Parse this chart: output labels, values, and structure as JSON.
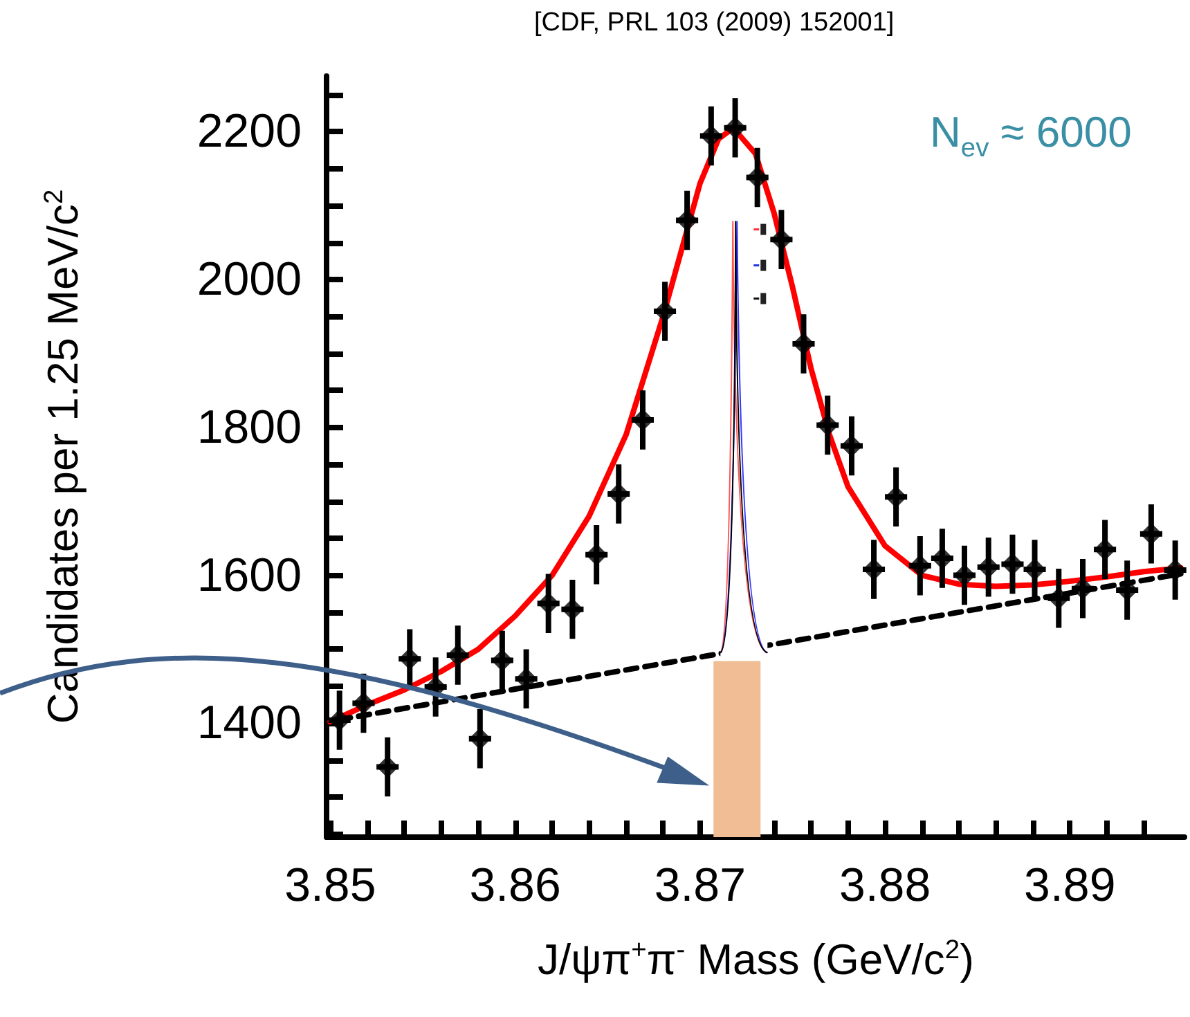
{
  "chart_data": {
    "type": "scatter",
    "xlabel": "J/ψπ$^{+}$π$^{-}$ Mass (GeV/c$^{2}$)",
    "ylabel": "Candidates per 1.25 MeV/c$^{2}$",
    "annotations": [
      "[CDF, PRL 103  (2009) 152001]",
      "N$_{ev}$ ≈ 6000"
    ],
    "xlim": [
      3.8498,
      3.8962
    ],
    "ylim": [
      1246,
      2275
    ],
    "xticks": [
      3.85,
      {
        "value": 3.852,
        "label": null
      },
      {
        "value": 3.854,
        "label": null
      },
      {
        "value": 3.856,
        "label": null
      },
      {
        "value": 3.858,
        "label": null
      },
      3.86,
      {
        "value": 3.862,
        "label": null
      },
      {
        "value": 3.864,
        "label": null
      },
      {
        "value": 3.866,
        "label": null
      },
      {
        "value": 3.868,
        "label": null
      },
      3.87,
      {
        "value": 3.872,
        "label": null
      },
      {
        "value": 3.874,
        "label": null
      },
      {
        "value": 3.876,
        "label": null
      },
      {
        "value": 3.878,
        "label": null
      },
      3.88,
      {
        "value": 3.882,
        "label": null
      },
      {
        "value": 3.884,
        "label": null
      },
      {
        "value": 3.886,
        "label": null
      },
      {
        "value": 3.888,
        "label": null
      },
      3.89,
      {
        "value": 3.892,
        "label": null
      },
      {
        "value": 3.894,
        "label": null
      }
    ],
    "yticks": [
      {
        "value": 1250,
        "label": null
      },
      {
        "value": 1300,
        "label": null
      },
      {
        "value": 1350,
        "label": null
      },
      1400,
      {
        "value": 1450,
        "label": null
      },
      {
        "value": 1500,
        "label": null
      },
      {
        "value": 1550,
        "label": null
      },
      1600,
      {
        "value": 1650,
        "label": null
      },
      {
        "value": 1700,
        "label": null
      },
      {
        "value": 1750,
        "label": null
      },
      1800,
      {
        "value": 1850,
        "label": null
      },
      {
        "value": 1900,
        "label": null
      },
      {
        "value": 1950,
        "label": null
      },
      2000,
      {
        "value": 2050,
        "label": null
      },
      {
        "value": 2100,
        "label": null
      },
      {
        "value": 2150,
        "label": null
      },
      2200,
      {
        "value": 2250,
        "label": null
      }
    ],
    "series": [
      {
        "color": "#000000",
        "marker": "diamond",
        "x": [
          3.8505,
          3.8518,
          3.8531,
          3.8543,
          3.8557,
          3.8569,
          3.8581,
          3.8593,
          3.8606,
          3.8618,
          3.8631,
          3.8644,
          3.8656,
          3.8669,
          3.8681,
          3.8693,
          3.8706,
          3.8719,
          3.8731,
          3.8744,
          3.8756,
          3.8769,
          3.8782,
          3.8794,
          3.8806,
          3.8819,
          3.8831,
          3.8843,
          3.8856,
          3.8869,
          3.8881,
          3.8894,
          3.8907,
          3.8919,
          3.8931,
          3.8944,
          3.8957
        ],
        "values": [
          1404,
          1427,
          1341,
          1487,
          1449,
          1492,
          1379,
          1485,
          1460,
          1562,
          1554,
          1628,
          1710,
          1810,
          1957,
          2080,
          2194,
          2205,
          2138,
          2054,
          1913,
          1803,
          1775,
          1608,
          1706,
          1613,
          1623,
          1600,
          1611,
          1615,
          1608,
          1569,
          1582,
          1635,
          1580,
          1656,
          1607
        ],
        "errors": [
          40,
          40,
          40,
          40,
          40,
          40,
          40,
          40,
          40,
          40,
          40,
          40,
          40,
          40,
          40,
          40,
          40,
          40,
          40,
          40,
          40,
          40,
          40,
          40,
          40,
          40,
          40,
          40,
          40,
          40,
          40,
          40,
          40,
          40,
          40,
          40,
          40
        ],
        "xerrors": [
          0.0006,
          0.0006,
          0.0006,
          0.0006,
          0.0006,
          0.0006,
          0.0006,
          0.0006,
          0.0006,
          0.0006,
          0.0006,
          0.0006,
          0.0006,
          0.0006,
          0.0006,
          0.0006,
          0.0006,
          0.0006,
          0.0006,
          0.0006,
          0.0006,
          0.0006,
          0.0006,
          0.0006,
          0.0006,
          0.0006,
          0.0006,
          0.0006,
          0.0006,
          0.0006,
          0.0006,
          0.0006,
          0.0006,
          0.0006,
          0.0006,
          0.0006,
          0.0006
        ]
      },
      {
        "type": "line",
        "color": "#ff0000",
        "line_style": "solid",
        "x": [
          3.85,
          3.852,
          3.854,
          3.856,
          3.858,
          3.86,
          3.862,
          3.864,
          3.866,
          3.868,
          3.87,
          3.871,
          3.8718,
          3.873,
          3.874,
          3.875,
          3.876,
          3.877,
          3.878,
          3.88,
          3.882,
          3.884,
          3.886,
          3.888,
          3.89,
          3.892,
          3.894,
          3.896
        ],
        "values": [
          1402,
          1425,
          1445,
          1470,
          1500,
          1545,
          1600,
          1680,
          1790,
          1950,
          2130,
          2190,
          2205,
          2170,
          2090,
          1990,
          1880,
          1790,
          1720,
          1640,
          1600,
          1588,
          1585,
          1587,
          1592,
          1598,
          1605,
          1610
        ]
      },
      {
        "type": "line",
        "color": "#000000",
        "line_style": "dashed",
        "x": [
          3.8505,
          3.896
        ],
        "values": [
          1405,
          1602
        ]
      },
      {
        "type": "bar",
        "color": "#f0bd94",
        "x": [
          3.872
        ],
        "values": [
          1484
        ]
      }
    ]
  }
}
